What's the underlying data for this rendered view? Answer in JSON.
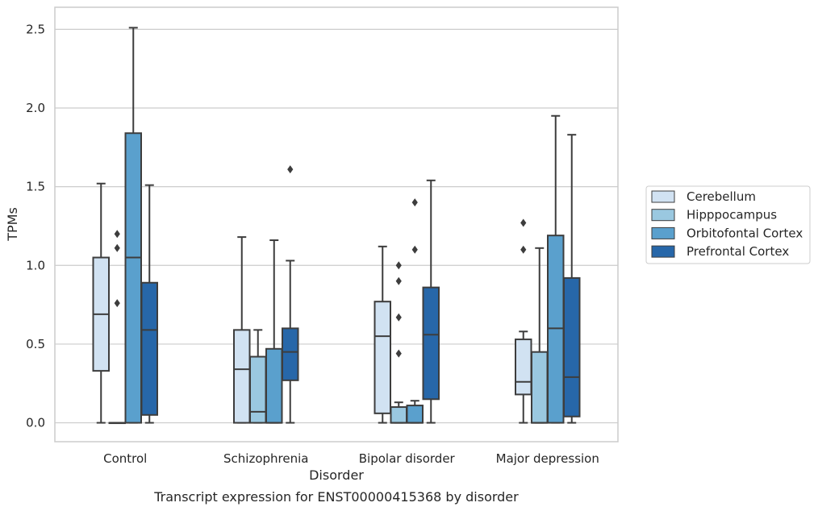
{
  "chart_data": {
    "type": "box",
    "caption": "Transcript expression for ENST00000415368 by disorder",
    "xlabel": "Disorder",
    "ylabel": "TPMs",
    "ylim": [
      -0.12,
      2.64
    ],
    "yticks": [
      0.0,
      0.5,
      1.0,
      1.5,
      2.0,
      2.5
    ],
    "ytick_labels": [
      "0.0",
      "0.5",
      "1.0",
      "1.5",
      "2.0",
      "2.5"
    ],
    "grid": "horizontal",
    "legend_position": "right",
    "categories": [
      "Control",
      "Schizophrenia",
      "Bipolar disorder",
      "Major depression"
    ],
    "series": [
      {
        "name": "Cerebellum",
        "color": "#d1e2f2",
        "boxes": [
          {
            "min": 0.0,
            "q1": 0.33,
            "median": 0.69,
            "q3": 1.05,
            "max": 1.52,
            "outliers": []
          },
          {
            "min": 0.0,
            "q1": 0.0,
            "median": 0.34,
            "q3": 0.59,
            "max": 1.18,
            "outliers": []
          },
          {
            "min": 0.0,
            "q1": 0.06,
            "median": 0.55,
            "q3": 0.77,
            "max": 1.12,
            "outliers": []
          },
          {
            "min": 0.0,
            "q1": 0.18,
            "median": 0.26,
            "q3": 0.53,
            "max": 0.58,
            "outliers": [
              1.1,
              1.27
            ]
          }
        ]
      },
      {
        "name": "Hipppocampus",
        "color": "#9ac8e0",
        "boxes": [
          {
            "min": 0.0,
            "q1": 0.0,
            "median": 0.0,
            "q3": 0.0,
            "max": 0.0,
            "outliers": [
              0.76,
              1.11,
              1.2
            ]
          },
          {
            "min": 0.0,
            "q1": 0.0,
            "median": 0.07,
            "q3": 0.42,
            "max": 0.59,
            "outliers": []
          },
          {
            "min": 0.0,
            "q1": 0.0,
            "median": 0.0,
            "q3": 0.1,
            "max": 0.13,
            "outliers": [
              0.44,
              0.67,
              0.9,
              1.0
            ]
          },
          {
            "min": 0.0,
            "q1": 0.0,
            "median": 0.0,
            "q3": 0.45,
            "max": 1.11,
            "outliers": []
          }
        ]
      },
      {
        "name": "Orbitofontal Cortex",
        "color": "#5aa0cd",
        "boxes": [
          {
            "min": 0.0,
            "q1": 0.0,
            "median": 1.05,
            "q3": 1.84,
            "max": 2.51,
            "outliers": []
          },
          {
            "min": 0.0,
            "q1": 0.0,
            "median": 0.0,
            "q3": 0.47,
            "max": 1.16,
            "outliers": []
          },
          {
            "min": 0.0,
            "q1": 0.0,
            "median": 0.0,
            "q3": 0.11,
            "max": 0.14,
            "outliers": [
              1.1,
              1.4
            ]
          },
          {
            "min": 0.0,
            "q1": 0.0,
            "median": 0.6,
            "q3": 1.19,
            "max": 1.95,
            "outliers": []
          }
        ]
      },
      {
        "name": "Prefrontal Cortex",
        "color": "#2767a9",
        "boxes": [
          {
            "min": 0.0,
            "q1": 0.05,
            "median": 0.59,
            "q3": 0.89,
            "max": 1.51,
            "outliers": []
          },
          {
            "min": 0.0,
            "q1": 0.27,
            "median": 0.45,
            "q3": 0.6,
            "max": 1.03,
            "outliers": [
              1.61
            ]
          },
          {
            "min": 0.0,
            "q1": 0.15,
            "median": 0.56,
            "q3": 0.86,
            "max": 1.54,
            "outliers": []
          },
          {
            "min": 0.0,
            "q1": 0.04,
            "median": 0.29,
            "q3": 0.92,
            "max": 1.83,
            "outliers": []
          }
        ]
      }
    ]
  }
}
